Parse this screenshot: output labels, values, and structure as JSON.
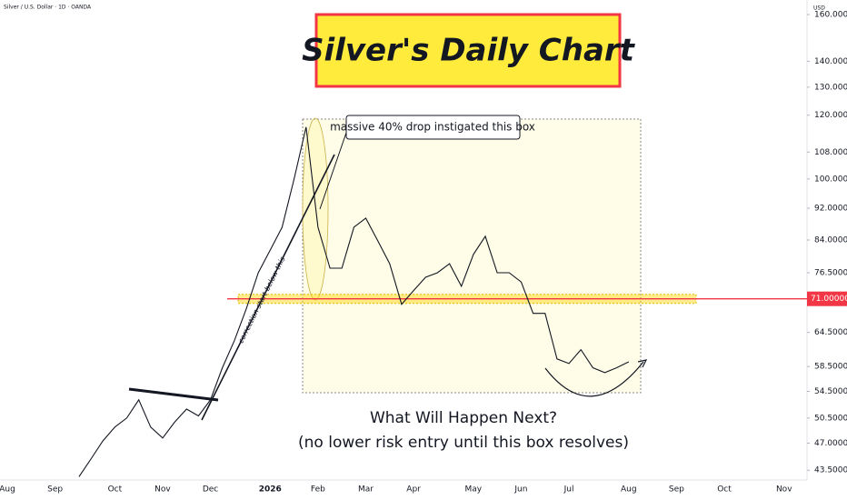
{
  "chart_data": {
    "type": "line",
    "symbol": "Silver / U.S. Dollar · 1D · OANDA",
    "currency": "USD",
    "title": "Silver's Daily Chart",
    "annotations": {
      "callout": "massive 40% drop instigated this box",
      "trend_note": "correction start below this",
      "question": "What Will Happen Next?",
      "note": "(no lower risk entry until this box resolves)"
    },
    "log_scale": true,
    "grid": false,
    "categories": [
      "Aug",
      null,
      null,
      null,
      "Sep",
      null,
      null,
      null,
      null,
      "Oct",
      null,
      null,
      null,
      "Nov",
      null,
      null,
      null,
      "Dec",
      null,
      null,
      null,
      null,
      "2026",
      null,
      null,
      null,
      "Feb",
      null,
      null,
      null,
      "Mar",
      null,
      null,
      null,
      "Apr",
      null,
      null,
      null,
      null,
      "May",
      null,
      null,
      null,
      "Jun",
      null,
      null,
      null,
      "Jul",
      null,
      null,
      null,
      null,
      "Aug",
      null,
      null,
      null,
      "Sep",
      null,
      null,
      null,
      "Oct",
      null,
      null,
      null,
      null,
      "Nov",
      null
    ],
    "series": [
      {
        "name": "Silver",
        "color": "#131722",
        "values": [
          null,
          null,
          null,
          null,
          null,
          null,
          42.7,
          44.9,
          47.3,
          49.2,
          50.5,
          53.2,
          49.2,
          47.7,
          49.9,
          51.8,
          50.8,
          53.2,
          58.3,
          63.0,
          69.0,
          76.5,
          81.6,
          87.1,
          100,
          116,
          87.1,
          77.5,
          77.5,
          87.1,
          89.4,
          83.8,
          78.5,
          69.9,
          72.7,
          75.5,
          76.5,
          78.5,
          73.6,
          80.6,
          84.9,
          76.5,
          76.5,
          74.5,
          68.1,
          68.1,
          59.8,
          59.0,
          61.4,
          58.3,
          57.5,
          58.3,
          59.3,
          null,
          null,
          null,
          null,
          null,
          null,
          null,
          null,
          null,
          null,
          null,
          null,
          null,
          null
        ]
      }
    ],
    "ylim": [
      42.3,
      166.8
    ],
    "yticks": [
      {
        "value": 43.5,
        "label": "43.50000"
      },
      {
        "value": 47,
        "label": "47.00000"
      },
      {
        "value": 50.5,
        "label": "50.50000"
      },
      {
        "value": 54.5,
        "label": "54.50000"
      },
      {
        "value": 58.5,
        "label": "58.50000"
      },
      {
        "value": 64.5,
        "label": "64.50000"
      },
      {
        "value": 76.5,
        "label": "76.50000"
      },
      {
        "value": 84,
        "label": "84.00000"
      },
      {
        "value": 92,
        "label": "92.00000"
      },
      {
        "value": 100,
        "label": "100.00000"
      },
      {
        "value": 108,
        "label": "108.00000"
      },
      {
        "value": 120,
        "label": "120.00000"
      },
      {
        "value": 130,
        "label": "130.00000"
      },
      {
        "value": 140,
        "label": "140.00000"
      },
      {
        "value": 160,
        "label": "160.00000"
      }
    ],
    "level": {
      "value": 71,
      "label": "71.00000",
      "color": "#f23645"
    }
  }
}
